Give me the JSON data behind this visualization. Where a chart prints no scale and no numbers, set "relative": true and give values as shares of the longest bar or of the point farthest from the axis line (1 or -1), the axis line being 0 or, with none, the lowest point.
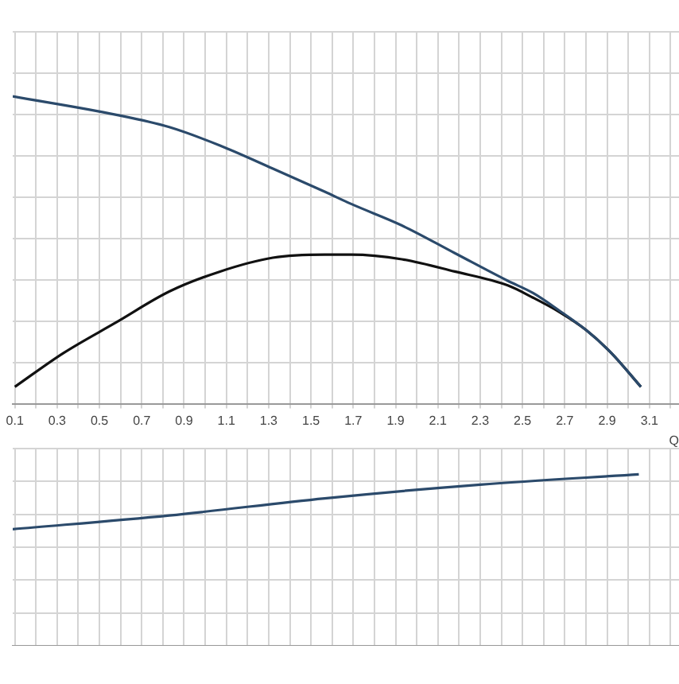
{
  "chart_data": [
    {
      "type": "line",
      "xlabel": "Q",
      "relative": true,
      "grid": true,
      "marker": "none",
      "legend": false,
      "xlim": [
        0.09,
        3.24
      ],
      "xticks": [
        0.1,
        {
          "value": 0.2,
          "label": null
        },
        0.3,
        {
          "value": 0.4,
          "label": null
        },
        0.5,
        {
          "value": 0.6,
          "label": null
        },
        0.7,
        {
          "value": 0.8,
          "label": null
        },
        0.9,
        {
          "value": 1.0,
          "label": null
        },
        1.1,
        {
          "value": 1.2,
          "label": null
        },
        1.3,
        {
          "value": 1.4,
          "label": null
        },
        1.5,
        {
          "value": 1.6,
          "label": null
        },
        1.7,
        {
          "value": 1.8,
          "label": null
        },
        1.9,
        {
          "value": 2.0,
          "label": null
        },
        2.1,
        {
          "value": 2.2,
          "label": null
        },
        2.3,
        {
          "value": 2.4,
          "label": null
        },
        2.5,
        {
          "value": 2.6,
          "label": null
        },
        2.7,
        {
          "value": 2.8,
          "label": null
        },
        2.9,
        {
          "value": 3.0,
          "label": null
        },
        3.1,
        {
          "value": 3.2,
          "label": null
        }
      ],
      "series": [
        {
          "color": "#2b4a6b",
          "x": [
            0.09,
            0.58,
            0.83,
            1.07,
            1.32,
            1.565,
            1.69,
            1.93,
            2.18,
            2.43,
            2.55,
            2.67,
            2.8,
            2.92,
            3.06
          ],
          "values": [
            1.0,
            0.94,
            0.9,
            0.84,
            0.765,
            0.69,
            0.65,
            0.58,
            0.49,
            0.4,
            0.36,
            0.305,
            0.24,
            0.165,
            0.055
          ]
        },
        {
          "color": "#111111",
          "x": [
            0.1,
            0.33,
            0.58,
            0.83,
            1.07,
            1.32,
            1.565,
            1.69,
            1.93,
            2.18,
            2.43,
            2.55,
            2.67,
            2.8,
            2.92,
            3.06
          ],
          "values": [
            0.055,
            0.165,
            0.265,
            0.365,
            0.43,
            0.475,
            0.485,
            0.485,
            0.47,
            0.43,
            0.385,
            0.345,
            0.3,
            0.24,
            0.165,
            0.055
          ]
        }
      ]
    },
    {
      "type": "line",
      "relative": true,
      "grid": true,
      "marker": "none",
      "legend": false,
      "tick_labels": false,
      "xlim": [
        0.09,
        3.24
      ],
      "xticks": [
        0.1,
        0.2,
        0.3,
        0.4,
        0.5,
        0.6,
        0.7,
        0.8,
        0.9,
        1.0,
        1.1,
        1.2,
        1.3,
        1.4,
        1.5,
        1.6,
        1.7,
        1.8,
        1.9,
        2.0,
        2.1,
        2.2,
        2.3,
        2.4,
        2.5,
        2.6,
        2.7,
        2.8,
        2.9,
        3.0,
        3.1,
        3.2
      ],
      "series": [
        {
          "color": "#2b4a6b",
          "x": [
            0.09,
            0.83,
            1.565,
            2.3,
            3.05
          ],
          "values": [
            0.68,
            0.76,
            0.86,
            0.94,
            1.0
          ]
        }
      ]
    }
  ]
}
